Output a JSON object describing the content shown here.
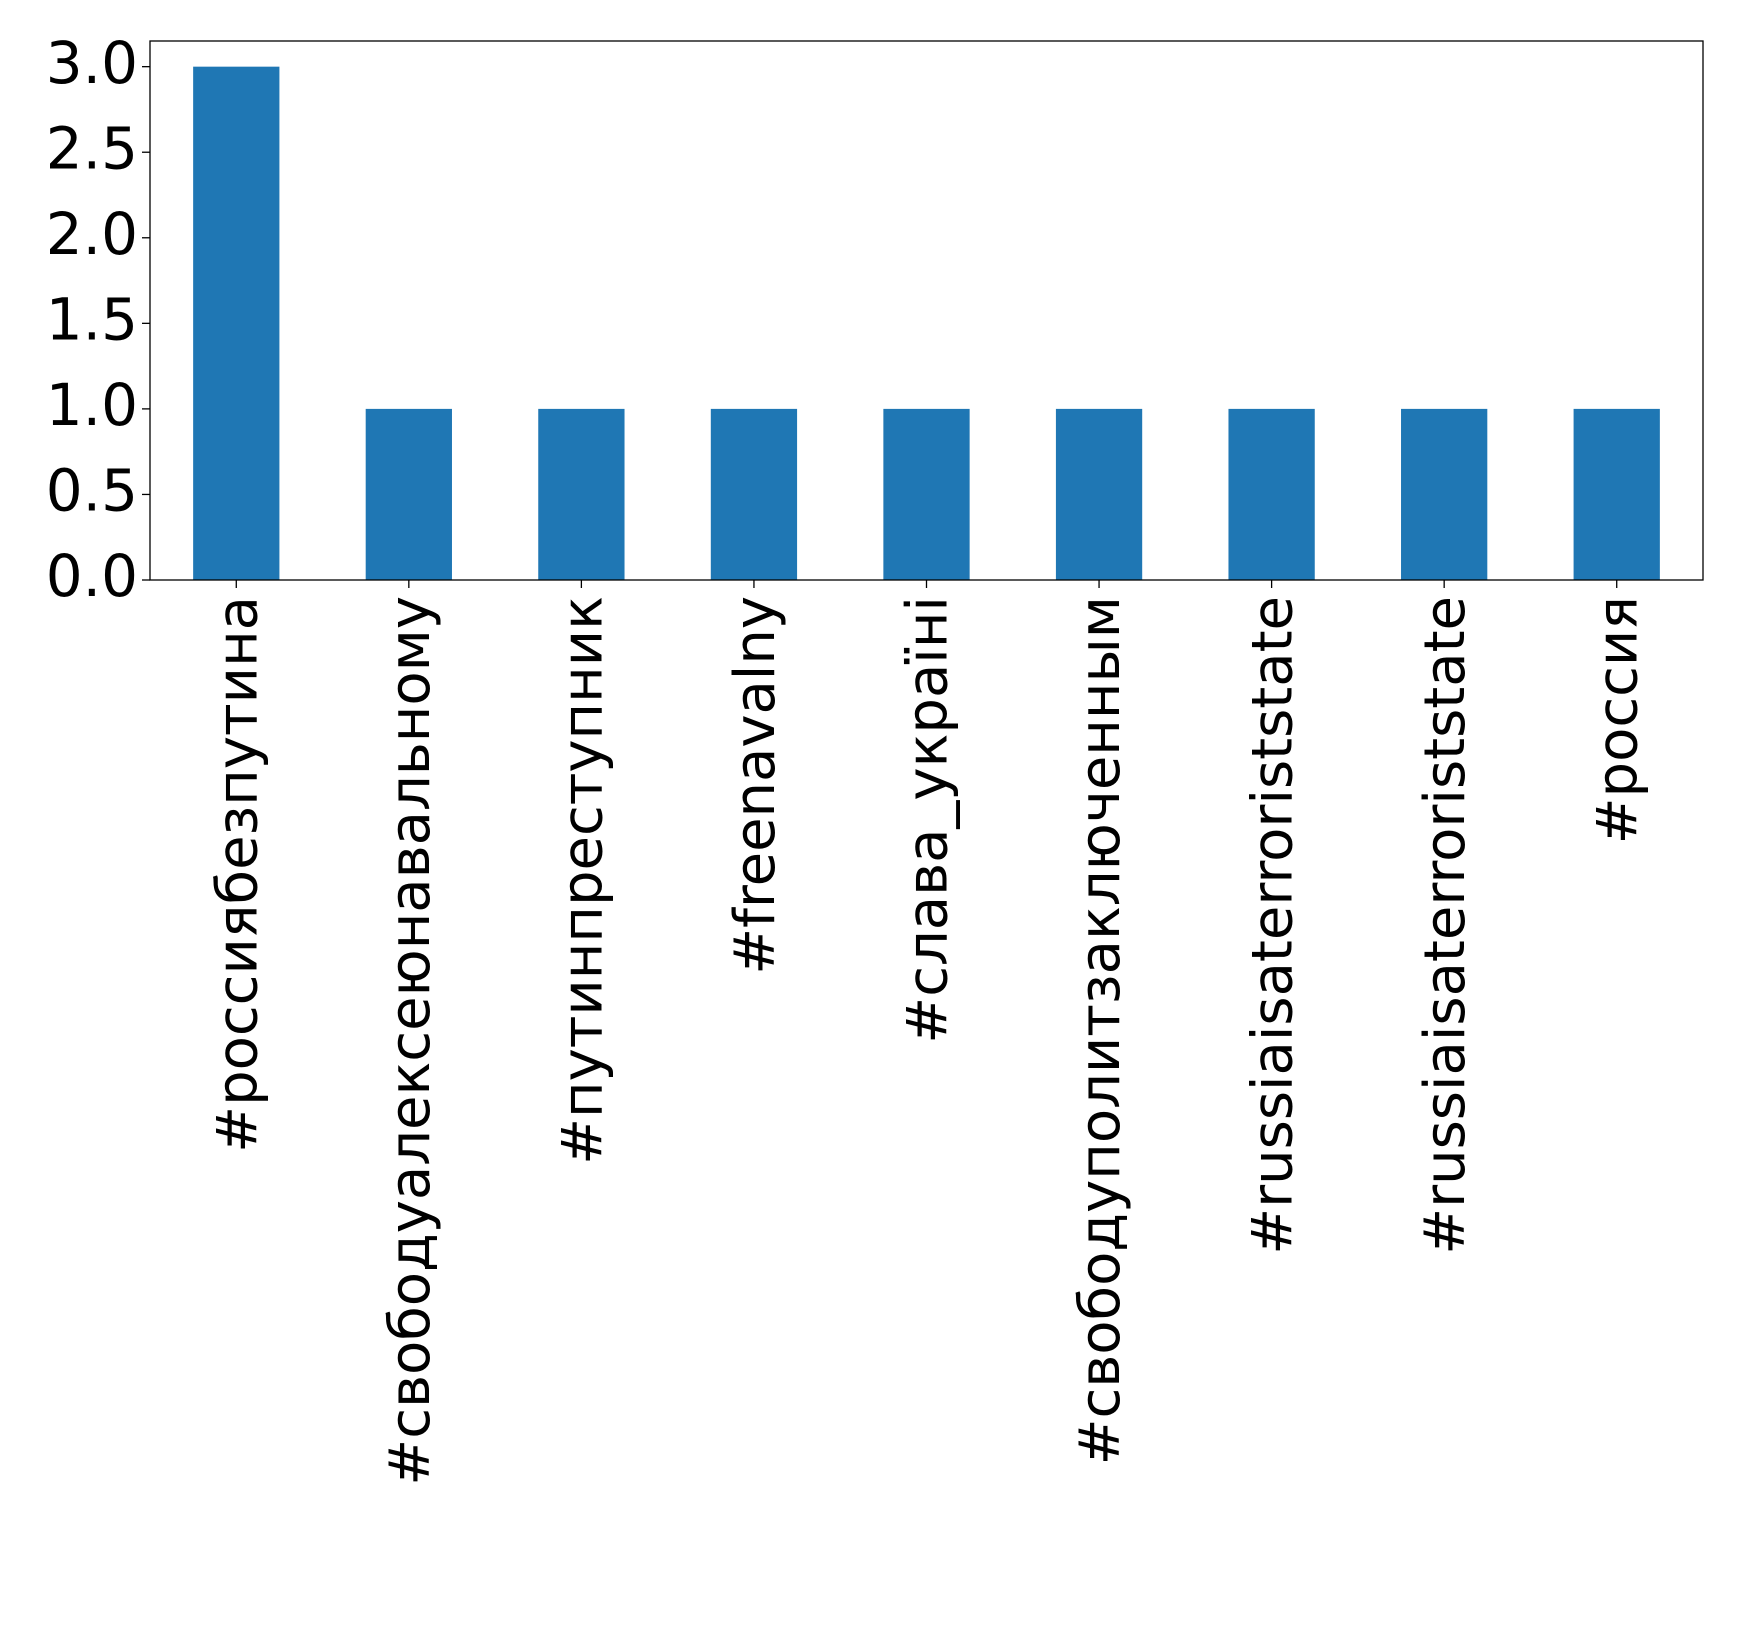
{
  "chart_data": {
    "type": "bar",
    "title": "",
    "xlabel": "",
    "ylabel": "",
    "categories": [
      "#россиябезпутина",
      "#свободуалексеюнавальному",
      "#путинпреступник",
      "#freenavalny",
      "#слава_україні",
      "#свободуполитзаключенным",
      "#russiaisaterroriststate",
      "#russiaisaterroriststate",
      "#россия"
    ],
    "values": [
      3,
      1,
      1,
      1,
      1,
      1,
      1,
      1,
      1
    ],
    "ylim": [
      0,
      3.15
    ],
    "yticks": [
      0.0,
      0.5,
      1.0,
      1.5,
      2.0,
      2.5,
      3.0
    ],
    "ytick_labels": [
      "0.0",
      "0.5",
      "1.0",
      "1.5",
      "2.0",
      "2.5",
      "3.0"
    ],
    "grid": false,
    "legend": false,
    "bar_color": "#1f77b4"
  }
}
